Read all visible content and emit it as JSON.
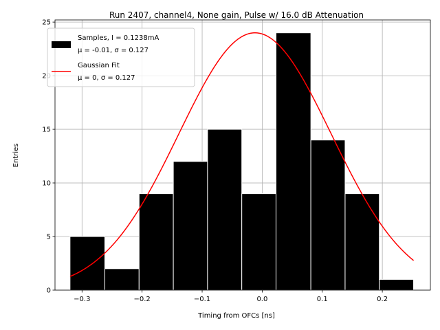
{
  "chart_data": {
    "type": "bar",
    "title": "Run 2407, channel4, None gain, Pulse w/ 16.0 dB Attenuation",
    "xlabel": "Timing from OFCs [ns]",
    "ylabel": "Entries",
    "xlim": [
      -0.345,
      0.28
    ],
    "ylim": [
      0,
      25.2
    ],
    "grid": true,
    "legend_position": "top-left",
    "xticks": [
      -0.3,
      -0.2,
      -0.1,
      0.0,
      0.1,
      0.2
    ],
    "xtick_labels": [
      "−0.3",
      "−0.2",
      "−0.1",
      "0.0",
      "0.1",
      "0.2"
    ],
    "yticks": [
      0,
      5,
      10,
      15,
      20,
      25
    ],
    "ytick_labels": [
      "0",
      "5",
      "10",
      "15",
      "20",
      "25"
    ],
    "bin_edges": [
      -0.32,
      -0.262,
      -0.205,
      -0.148,
      -0.091,
      -0.034,
      0.023,
      0.081,
      0.138,
      0.195,
      0.252
    ],
    "counts": [
      5,
      2,
      9,
      12,
      15,
      9,
      24,
      14,
      9,
      1
    ],
    "histogram_color": "#000000",
    "fit": {
      "name": "Gaussian Fit",
      "mu_center": -0.012,
      "sigma": 0.127,
      "amplitude": 24.0,
      "x_range": [
        -0.32,
        0.252
      ],
      "color": "#ff0000"
    },
    "legend": [
      {
        "label_line1": "Samples, I = 0.1238mA",
        "label_line2": "μ = -0.01, σ = 0.127"
      },
      {
        "label_line1": "Gaussian Fit",
        "label_line2": "μ = 0, σ = 0.127"
      }
    ]
  }
}
